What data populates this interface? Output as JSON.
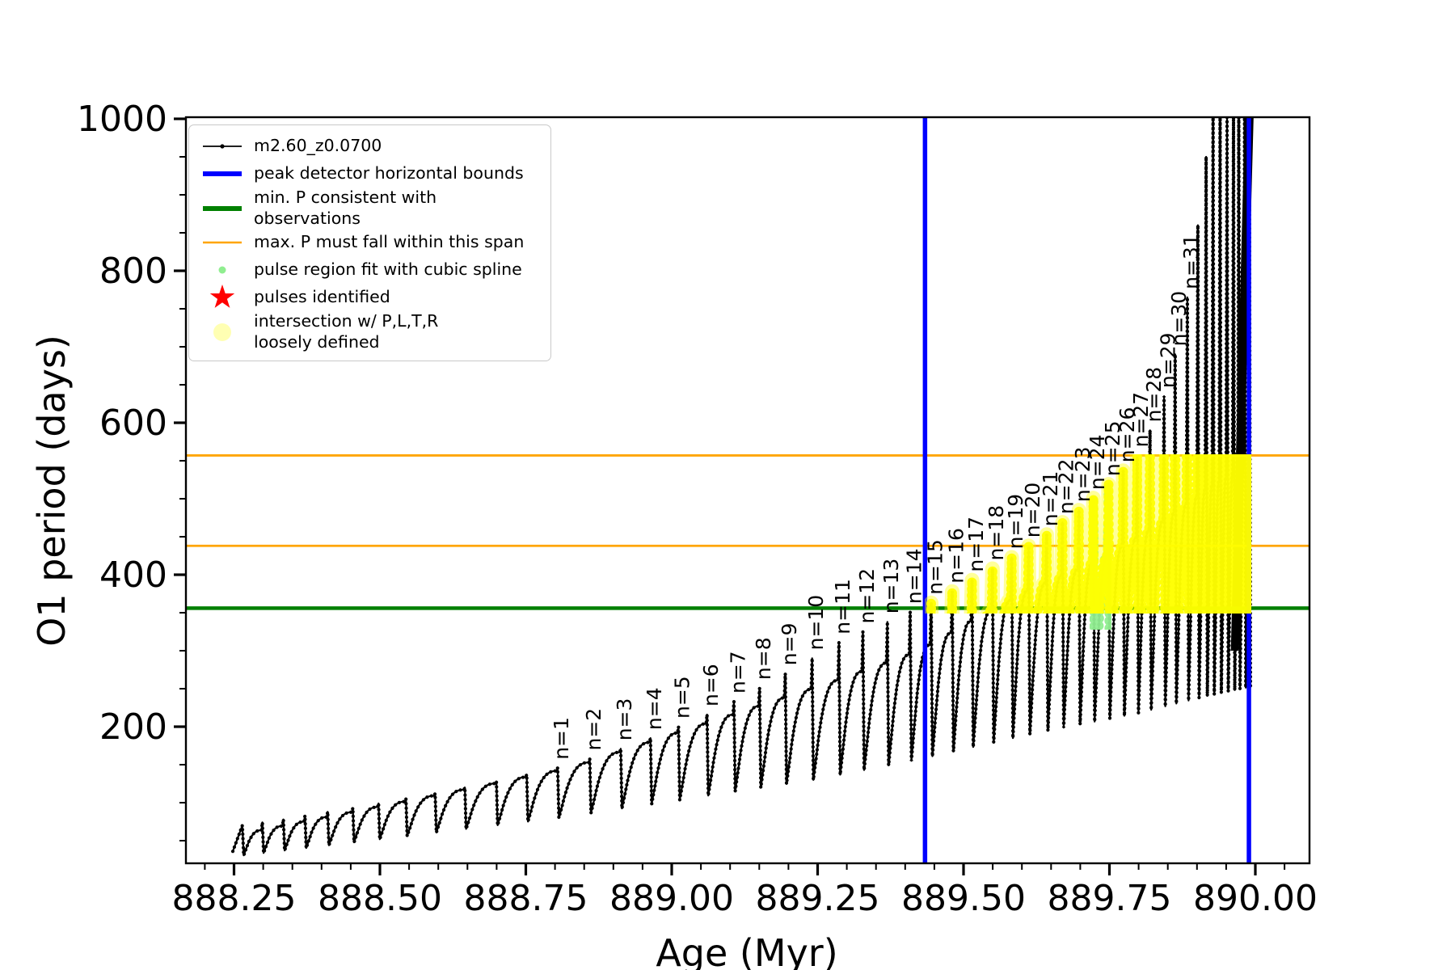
{
  "axes": {
    "xlabel": "Age (Myr)",
    "ylabel": "O1 period (days)",
    "x_tick_labels": [
      "888.25",
      "888.50",
      "888.75",
      "889.00",
      "889.25",
      "889.50",
      "889.75",
      "890.00"
    ],
    "x_ticks": [
      888.25,
      888.5,
      888.75,
      889.0,
      889.25,
      889.5,
      889.75,
      890.0
    ],
    "y_tick_labels": [
      "200",
      "400",
      "600",
      "800",
      "1000"
    ],
    "y_ticks": [
      200,
      400,
      600,
      800,
      1000
    ],
    "xlim": [
      888.167,
      890.093
    ],
    "ylim": [
      20,
      1002
    ],
    "x_minor_step": 0.05,
    "y_minor_step": 50
  },
  "legend": {
    "entries": [
      {
        "marker": "line-dot",
        "color": "#000000",
        "label": "m2.60_z0.0700"
      },
      {
        "marker": "thick-line",
        "color": "#0000ff",
        "label": "peak detector horizontal bounds"
      },
      {
        "marker": "thick-line",
        "color": "#008000",
        "label": "min. P consistent with observations"
      },
      {
        "marker": "thin-line",
        "color": "#ffa500",
        "label": "max. P must fall within this span"
      },
      {
        "marker": "small-dot",
        "color": "#90ee90",
        "label": "pulse region fit with cubic spline"
      },
      {
        "marker": "star",
        "color": "#ff0000",
        "label": "pulses identified"
      },
      {
        "marker": "big-dot",
        "color": "#ffffb3",
        "label": "intersection w/ P,L,T,R\nloosely defined"
      }
    ]
  },
  "chart_data": {
    "type": "line",
    "title": "",
    "series_name": "m2.60_z0.0700",
    "xlabel": "Age (Myr)",
    "ylabel": "O1 period (days)",
    "xlim": [
      888.167,
      890.093
    ],
    "ylim": [
      20,
      1002
    ],
    "line_color": "#000000",
    "peak_detector_bounds_x": [
      889.434,
      889.989
    ],
    "min_P_consistent_y": 356,
    "max_P_span_y": [
      438,
      557
    ],
    "yellow_intersection_region": {
      "x": [
        889.434,
        889.993
      ],
      "y": [
        350,
        558
      ]
    },
    "green_spline_region": {
      "x": [
        889.716,
        889.754
      ],
      "y": [
        328,
        592
      ]
    },
    "unlabeled_pulses": [
      [
        888.265,
        70
      ],
      [
        888.299,
        74
      ],
      [
        888.335,
        78
      ],
      [
        888.372,
        83
      ],
      [
        888.411,
        88
      ],
      [
        888.454,
        93
      ],
      [
        888.498,
        99
      ],
      [
        888.545,
        105
      ],
      [
        888.595,
        112
      ],
      [
        888.646,
        120
      ],
      [
        888.7,
        128
      ],
      [
        888.752,
        137
      ]
    ],
    "labeled_pulses": [
      {
        "n": 1,
        "age": 888.805,
        "peak": 146
      },
      {
        "n": 2,
        "age": 888.86,
        "peak": 158
      },
      {
        "n": 3,
        "age": 888.913,
        "peak": 171
      },
      {
        "n": 4,
        "age": 888.964,
        "peak": 185
      },
      {
        "n": 5,
        "age": 889.012,
        "peak": 200
      },
      {
        "n": 6,
        "age": 889.061,
        "peak": 216
      },
      {
        "n": 7,
        "age": 889.107,
        "peak": 233
      },
      {
        "n": 8,
        "age": 889.151,
        "peak": 251
      },
      {
        "n": 9,
        "age": 889.195,
        "peak": 270
      },
      {
        "n": 10,
        "age": 889.241,
        "peak": 290
      },
      {
        "n": 11,
        "age": 889.287,
        "peak": 311
      },
      {
        "n": 12,
        "age": 889.328,
        "peak": 325
      },
      {
        "n": 13,
        "age": 889.37,
        "peak": 338
      },
      {
        "n": 14,
        "age": 889.409,
        "peak": 351
      },
      {
        "n": 15,
        "age": 889.445,
        "peak": 363
      },
      {
        "n": 16,
        "age": 889.481,
        "peak": 378
      },
      {
        "n": 17,
        "age": 889.515,
        "peak": 393
      },
      {
        "n": 18,
        "age": 889.55,
        "peak": 408
      },
      {
        "n": 19,
        "age": 889.583,
        "peak": 423
      },
      {
        "n": 20,
        "age": 889.612,
        "peak": 438
      },
      {
        "n": 21,
        "age": 889.643,
        "peak": 453
      },
      {
        "n": 22,
        "age": 889.67,
        "peak": 469
      },
      {
        "n": 23,
        "age": 889.698,
        "peak": 485
      },
      {
        "n": 24,
        "age": 889.723,
        "peak": 501
      },
      {
        "n": 25,
        "age": 889.749,
        "peak": 519
      },
      {
        "n": 26,
        "age": 889.774,
        "peak": 537
      },
      {
        "n": 27,
        "age": 889.798,
        "peak": 557
      },
      {
        "n": 28,
        "age": 889.82,
        "peak": 590
      },
      {
        "n": 29,
        "age": 889.844,
        "peak": 635
      },
      {
        "n": 30,
        "age": 889.863,
        "peak": 690
      },
      {
        "n": 31,
        "age": 889.884,
        "peak": 765
      }
    ],
    "clipped_pulses": [
      [
        889.902,
        860
      ],
      [
        889.916,
        950
      ],
      [
        889.928,
        1008
      ],
      [
        889.94,
        1008
      ],
      [
        889.952,
        1008
      ],
      [
        889.963,
        1008
      ],
      [
        889.972,
        1008
      ],
      [
        889.982,
        1008
      ],
      [
        889.99,
        1008
      ]
    ],
    "dome_envelope": [
      [
        888.258,
        60
      ],
      [
        888.805,
        146
      ],
      [
        889.241,
        255
      ],
      [
        889.409,
        300
      ],
      [
        889.5,
        340
      ],
      [
        889.612,
        385
      ],
      [
        889.723,
        420
      ],
      [
        889.82,
        465
      ],
      [
        889.913,
        515
      ],
      [
        889.99,
        548
      ]
    ],
    "min_envelope": [
      [
        888.258,
        30
      ],
      [
        888.5,
        52
      ],
      [
        888.805,
        80
      ],
      [
        889.241,
        130
      ],
      [
        889.409,
        155
      ],
      [
        889.612,
        190
      ],
      [
        889.798,
        218
      ],
      [
        889.913,
        240
      ],
      [
        890.004,
        255
      ]
    ],
    "colors": {
      "blue_bounds": "#0000ff",
      "green_min_line": "#008000",
      "orange_span": "#ffa500",
      "spline_dots": "#90ee90",
      "pulse_star": "#ff0000",
      "intersection_dots": "#ffff00"
    }
  }
}
